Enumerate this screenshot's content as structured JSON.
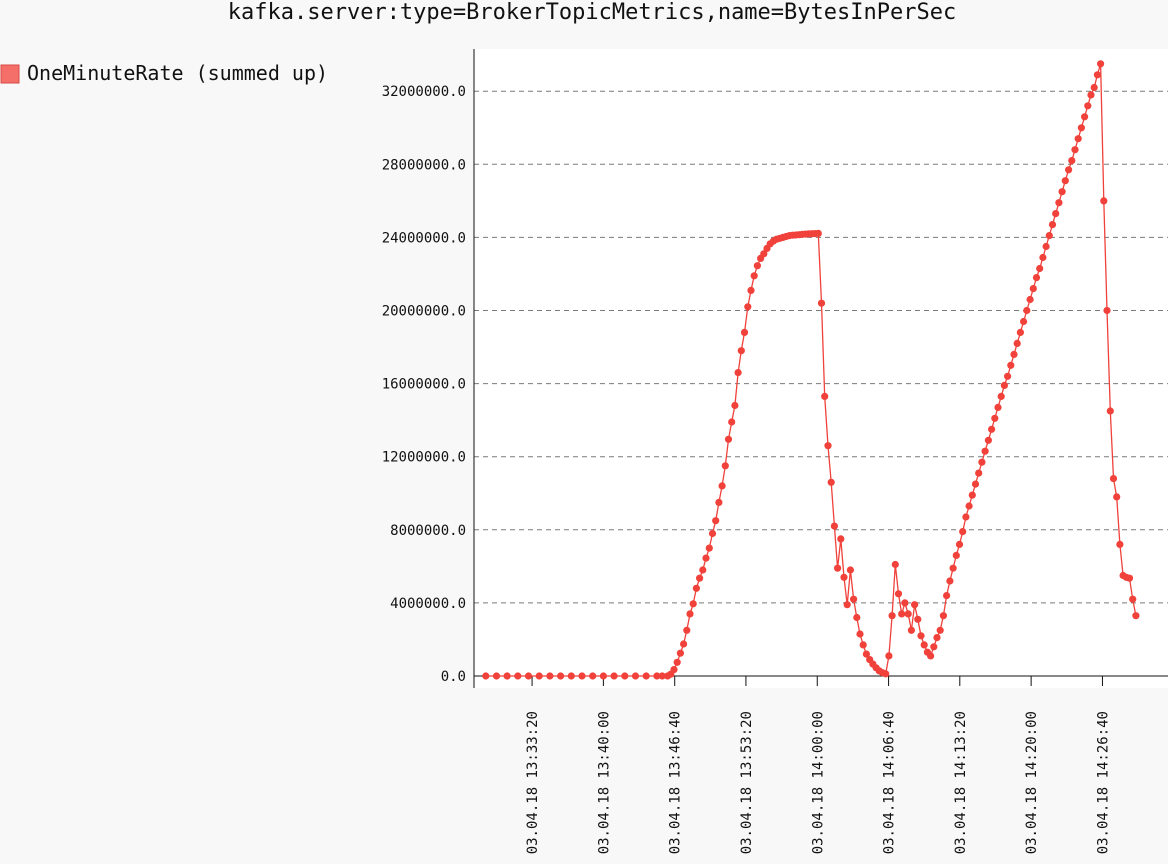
{
  "chart_data": {
    "type": "line",
    "title": "kafka.server:type=BrokerTopicMetrics,name=BytesInPerSec",
    "ylim": [
      0,
      33600000
    ],
    "y_ticks": [
      "0.0",
      "4000000.0",
      "8000000.0",
      "12000000.0",
      "16000000.0",
      "20000000.0",
      "24000000.0",
      "28000000.0",
      "32000000.0"
    ],
    "y_tick_values": [
      0,
      4000000,
      8000000,
      12000000,
      16000000,
      20000000,
      24000000,
      28000000,
      32000000
    ],
    "x_ticks": [
      "03.04.18 13:33:20",
      "03.04.18 13:40:00",
      "03.04.18 13:46:40",
      "03.04.18 13:53:20",
      "03.04.18 14:00:00",
      "03.04.18 14:06:40",
      "03.04.18 14:13:20",
      "03.04.18 14:20:00",
      "03.04.18 14:26:40"
    ],
    "x_tick_minutes": [
      33.33,
      40,
      46.67,
      53.33,
      60,
      66.67,
      73.33,
      80,
      86.67
    ],
    "xlim_minutes": [
      27.9,
      92.8
    ],
    "x_unit": "minutes after 13:00 on 03.04.18",
    "grid": "horizontal dashed",
    "legend": "top-left",
    "series": [
      {
        "name": "OneMinuteRate (summed up)",
        "color": "#f0413a",
        "points": [
          [
            29,
            0
          ],
          [
            30,
            0
          ],
          [
            31,
            0
          ],
          [
            32,
            0
          ],
          [
            33,
            0
          ],
          [
            34,
            0
          ],
          [
            35,
            0
          ],
          [
            36,
            0
          ],
          [
            37,
            0
          ],
          [
            38,
            0
          ],
          [
            39,
            0
          ],
          [
            40,
            0
          ],
          [
            41,
            0
          ],
          [
            42,
            0
          ],
          [
            43,
            0
          ],
          [
            44,
            0
          ],
          [
            45,
            0
          ],
          [
            45.5,
            0
          ],
          [
            46,
            0
          ],
          [
            46.3,
            100000
          ],
          [
            46.6,
            350000
          ],
          [
            46.9,
            750000
          ],
          [
            47.2,
            1250000
          ],
          [
            47.5,
            1750000
          ],
          [
            47.8,
            2500000
          ],
          [
            48.1,
            3400000
          ],
          [
            48.4,
            3950000
          ],
          [
            48.7,
            4800000
          ],
          [
            49.0,
            5350000
          ],
          [
            49.3,
            5800000
          ],
          [
            49.6,
            6450000
          ],
          [
            49.9,
            7000000
          ],
          [
            50.2,
            7800000
          ],
          [
            50.5,
            8500000
          ],
          [
            50.8,
            9500000
          ],
          [
            51.1,
            10400000
          ],
          [
            51.4,
            11500000
          ],
          [
            51.7,
            12950000
          ],
          [
            52.0,
            13900000
          ],
          [
            52.3,
            14800000
          ],
          [
            52.6,
            16600000
          ],
          [
            52.9,
            17800000
          ],
          [
            53.2,
            18800000
          ],
          [
            53.5,
            20200000
          ],
          [
            53.8,
            21100000
          ],
          [
            54.1,
            21900000
          ],
          [
            54.4,
            22450000
          ],
          [
            54.7,
            22850000
          ],
          [
            55.0,
            23100000
          ],
          [
            55.3,
            23400000
          ],
          [
            55.6,
            23650000
          ],
          [
            55.9,
            23800000
          ],
          [
            56.2,
            23900000
          ],
          [
            56.5,
            23950000
          ],
          [
            56.8,
            24000000
          ],
          [
            57.1,
            24050000
          ],
          [
            57.4,
            24100000
          ],
          [
            57.7,
            24120000
          ],
          [
            58.0,
            24130000
          ],
          [
            58.3,
            24150000
          ],
          [
            58.6,
            24170000
          ],
          [
            58.9,
            24180000
          ],
          [
            59.2,
            24190000
          ],
          [
            59.5,
            24200000
          ],
          [
            59.8,
            24210000
          ],
          [
            60.1,
            24220000
          ],
          [
            60.4,
            20400000
          ],
          [
            60.7,
            15300000
          ],
          [
            61.0,
            12600000
          ],
          [
            61.3,
            10600000
          ],
          [
            61.6,
            8200000
          ],
          [
            61.9,
            5900000
          ],
          [
            62.2,
            7500000
          ],
          [
            62.5,
            5400000
          ],
          [
            62.8,
            3900000
          ],
          [
            63.1,
            5800000
          ],
          [
            63.4,
            4200000
          ],
          [
            63.7,
            3200000
          ],
          [
            64.0,
            2300000
          ],
          [
            64.3,
            1700000
          ],
          [
            64.6,
            1200000
          ],
          [
            64.9,
            900000
          ],
          [
            65.2,
            650000
          ],
          [
            65.5,
            450000
          ],
          [
            65.8,
            280000
          ],
          [
            66.1,
            180000
          ],
          [
            66.4,
            120000
          ],
          [
            66.7,
            1100000
          ],
          [
            67.0,
            3300000
          ],
          [
            67.3,
            6100000
          ],
          [
            67.6,
            4500000
          ],
          [
            67.9,
            3400000
          ],
          [
            68.2,
            4000000
          ],
          [
            68.5,
            3400000
          ],
          [
            68.8,
            2500000
          ],
          [
            69.1,
            3900000
          ],
          [
            69.4,
            3100000
          ],
          [
            69.7,
            2200000
          ],
          [
            70.0,
            1700000
          ],
          [
            70.3,
            1300000
          ],
          [
            70.6,
            1100000
          ],
          [
            70.9,
            1600000
          ],
          [
            71.2,
            2100000
          ],
          [
            71.5,
            2500000
          ],
          [
            71.8,
            3300000
          ],
          [
            72.1,
            4400000
          ],
          [
            72.4,
            5200000
          ],
          [
            72.7,
            5900000
          ],
          [
            73.0,
            6600000
          ],
          [
            73.3,
            7200000
          ],
          [
            73.6,
            7900000
          ],
          [
            73.9,
            8700000
          ],
          [
            74.2,
            9300000
          ],
          [
            74.5,
            9900000
          ],
          [
            74.8,
            10500000
          ],
          [
            75.1,
            11100000
          ],
          [
            75.4,
            11700000
          ],
          [
            75.7,
            12300000
          ],
          [
            76.0,
            12900000
          ],
          [
            76.3,
            13500000
          ],
          [
            76.6,
            14100000
          ],
          [
            76.9,
            14700000
          ],
          [
            77.2,
            15300000
          ],
          [
            77.5,
            15900000
          ],
          [
            77.8,
            16400000
          ],
          [
            78.1,
            17000000
          ],
          [
            78.4,
            17600000
          ],
          [
            78.7,
            18200000
          ],
          [
            79.0,
            18800000
          ],
          [
            79.3,
            19400000
          ],
          [
            79.6,
            20000000
          ],
          [
            79.9,
            20600000
          ],
          [
            80.2,
            21200000
          ],
          [
            80.5,
            21800000
          ],
          [
            80.8,
            22300000
          ],
          [
            81.1,
            22900000
          ],
          [
            81.4,
            23500000
          ],
          [
            81.7,
            24100000
          ],
          [
            82.0,
            24700000
          ],
          [
            82.3,
            25300000
          ],
          [
            82.6,
            25900000
          ],
          [
            82.9,
            26500000
          ],
          [
            83.2,
            27100000
          ],
          [
            83.5,
            27700000
          ],
          [
            83.8,
            28200000
          ],
          [
            84.1,
            28800000
          ],
          [
            84.4,
            29400000
          ],
          [
            84.7,
            30000000
          ],
          [
            85.0,
            30600000
          ],
          [
            85.3,
            31200000
          ],
          [
            85.6,
            31800000
          ],
          [
            85.9,
            32200000
          ],
          [
            86.2,
            32900000
          ],
          [
            86.5,
            33500000
          ],
          [
            86.8,
            26000000
          ],
          [
            87.1,
            20000000
          ],
          [
            87.4,
            14500000
          ],
          [
            87.7,
            10800000
          ],
          [
            88.0,
            9800000
          ],
          [
            88.3,
            7200000
          ],
          [
            88.6,
            5500000
          ],
          [
            88.9,
            5400000
          ],
          [
            89.2,
            5350000
          ],
          [
            89.5,
            4200000
          ],
          [
            89.8,
            3300000
          ]
        ]
      }
    ]
  }
}
